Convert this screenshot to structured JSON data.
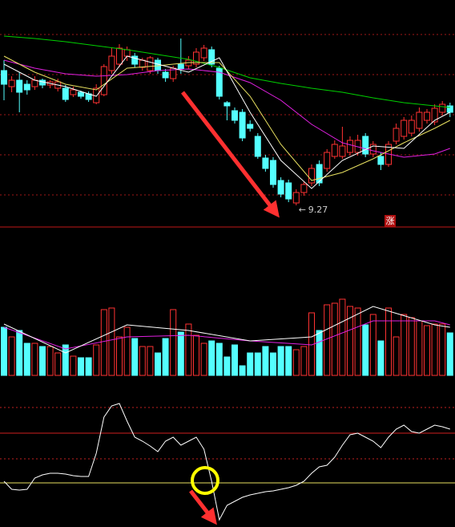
{
  "chart_data": [
    {
      "type": "candlestick",
      "up_color": "#ff3232",
      "down_color": "#54ffff",
      "ylim": [
        9.0,
        11.4
      ],
      "yticks": [
        9.4,
        9.9,
        10.4,
        10.9,
        11.4
      ],
      "grid": true,
      "open": [
        10.95,
        10.75,
        10.83,
        10.78,
        10.75,
        10.83,
        10.77,
        10.73,
        10.73,
        10.65,
        10.68,
        10.66,
        10.55,
        10.65,
        10.95,
        11.03,
        11.13,
        11.13,
        10.99,
        10.95,
        11.08,
        10.93,
        10.85,
        11.03,
        11.01,
        11.03,
        11.11,
        11.21,
        10.98,
        10.55,
        10.45,
        10.43,
        10.28,
        10.13,
        9.86,
        9.83,
        9.58,
        9.55,
        9.3,
        9.43,
        9.55,
        9.78,
        9.73,
        9.88,
        9.88,
        9.93,
        9.93,
        10.13,
        9.91,
        9.88,
        9.78,
        10.07,
        10.13,
        10.17,
        10.23,
        10.33,
        10.31,
        10.43,
        10.51
      ],
      "close": [
        10.78,
        10.83,
        10.68,
        10.71,
        10.83,
        10.77,
        10.81,
        10.81,
        10.59,
        10.71,
        10.63,
        10.59,
        10.73,
        11.0,
        11.13,
        11.23,
        11.21,
        11.03,
        11.08,
        11.11,
        10.95,
        10.86,
        10.98,
        10.97,
        11.08,
        11.18,
        11.23,
        11.03,
        10.63,
        10.51,
        10.33,
        10.11,
        10.23,
        9.88,
        9.73,
        9.53,
        9.41,
        9.35,
        9.43,
        9.53,
        9.73,
        9.55,
        9.93,
        10.03,
        10.01,
        10.08,
        10.08,
        9.91,
        10.03,
        9.78,
        10.03,
        10.23,
        10.33,
        10.33,
        10.43,
        10.43,
        10.48,
        10.53,
        10.43
      ],
      "high": [
        11.08,
        10.88,
        10.93,
        10.83,
        10.88,
        10.85,
        10.83,
        10.85,
        10.77,
        10.75,
        10.7,
        10.69,
        10.78,
        11.03,
        11.23,
        11.28,
        11.25,
        11.17,
        11.11,
        11.13,
        11.11,
        10.97,
        11.01,
        11.35,
        11.13,
        11.23,
        11.27,
        11.25,
        11.01,
        10.57,
        10.49,
        10.47,
        10.33,
        10.17,
        9.9,
        9.87,
        9.62,
        9.59,
        9.47,
        9.57,
        9.78,
        9.83,
        9.97,
        10.08,
        10.25,
        10.13,
        10.15,
        10.17,
        10.07,
        9.93,
        10.07,
        10.29,
        10.37,
        10.39,
        10.49,
        10.47,
        10.53,
        10.57,
        10.55
      ],
      "low": [
        10.58,
        10.68,
        10.43,
        10.65,
        10.71,
        10.73,
        10.73,
        10.69,
        10.56,
        10.62,
        10.6,
        10.56,
        10.53,
        10.63,
        10.91,
        10.99,
        11.07,
        10.99,
        10.95,
        10.91,
        10.91,
        10.81,
        10.81,
        10.91,
        10.97,
        10.99,
        11.07,
        10.99,
        10.59,
        10.33,
        10.29,
        10.07,
        10.19,
        9.85,
        9.69,
        9.49,
        9.37,
        9.31,
        9.27,
        9.39,
        9.51,
        9.51,
        9.69,
        9.85,
        9.85,
        9.89,
        9.89,
        9.87,
        9.87,
        9.71,
        9.75,
        10.03,
        10.09,
        10.13,
        10.19,
        10.29,
        10.27,
        10.39,
        10.37
      ],
      "lines": [
        {
          "color": "#00d000",
          "x": [
            0,
            4,
            8,
            12,
            16,
            20,
            24,
            28,
            32,
            36,
            40,
            44,
            48,
            52,
            56,
            58
          ],
          "values": [
            11.38,
            11.35,
            11.31,
            11.26,
            11.21,
            11.15,
            11.09,
            10.99,
            10.86,
            10.79,
            10.73,
            10.68,
            10.61,
            10.55,
            10.51,
            10.49
          ]
        },
        {
          "color": "#e020e0",
          "x": [
            0,
            4,
            8,
            12,
            16,
            20,
            24,
            28,
            32,
            36,
            40,
            44,
            48,
            52,
            56,
            58
          ],
          "values": [
            11.08,
            10.98,
            10.91,
            10.88,
            10.9,
            10.95,
            10.97,
            10.93,
            10.8,
            10.58,
            10.28,
            10.05,
            9.95,
            9.87,
            9.91,
            9.98
          ]
        },
        {
          "color": "#e8e060",
          "x": [
            0,
            4,
            8,
            12,
            16,
            20,
            24,
            28,
            32,
            36,
            40,
            44,
            48,
            52,
            56,
            58
          ],
          "values": [
            11.13,
            10.93,
            10.78,
            10.71,
            10.98,
            11.01,
            11.05,
            11.05,
            10.63,
            10.03,
            9.58,
            9.68,
            9.85,
            10.05,
            10.23,
            10.33
          ]
        },
        {
          "color": "#ffffff",
          "x": [
            0,
            4,
            8,
            12,
            16,
            20,
            24,
            28,
            32,
            36,
            40,
            44,
            48,
            52,
            56,
            58
          ],
          "values": [
            11.03,
            10.83,
            10.75,
            10.63,
            11.13,
            11.03,
            10.93,
            11.11,
            10.43,
            9.83,
            9.48,
            9.83,
            10.01,
            9.98,
            10.33,
            10.43
          ]
        }
      ],
      "low_marker": 9.27,
      "badge": "涨"
    },
    {
      "type": "bar",
      "ylim": [
        0,
        100
      ],
      "values": [
        60,
        48,
        56,
        40,
        40,
        36,
        36,
        28,
        38,
        24,
        22,
        22,
        38,
        82,
        84,
        48,
        60,
        46,
        36,
        36,
        28,
        46,
        82,
        54,
        64,
        50,
        40,
        43,
        40,
        23,
        38,
        12,
        28,
        28,
        36,
        28,
        36,
        36,
        32,
        36,
        78,
        56,
        88,
        90,
        95,
        86,
        84,
        63,
        76,
        43,
        84,
        48,
        76,
        72,
        68,
        62,
        64,
        64,
        53
      ],
      "lines": [
        {
          "color": "#e020e0",
          "x": [
            0,
            8,
            16,
            24,
            32,
            40,
            48,
            56,
            58
          ],
          "values": [
            60,
            33,
            48,
            50,
            43,
            38,
            68,
            68,
            63
          ]
        },
        {
          "color": "#ffffff",
          "x": [
            0,
            8,
            16,
            24,
            32,
            40,
            48,
            56,
            58
          ],
          "values": [
            64,
            28,
            63,
            56,
            43,
            48,
            86,
            63,
            60
          ]
        }
      ]
    },
    {
      "type": "line",
      "ylim": [
        -55,
        127
      ],
      "color": "#ffffff",
      "values": [
        2,
        -8,
        -9,
        -8,
        6,
        10,
        12,
        12,
        11,
        9,
        8,
        8,
        37,
        82,
        96,
        99,
        77,
        57,
        52,
        46,
        39,
        52,
        57,
        47,
        52,
        57,
        42,
        2,
        -46,
        -28,
        -23,
        -18,
        -15,
        -13,
        -11,
        -10,
        -8,
        -6,
        -3,
        2,
        12,
        20,
        22,
        32,
        47,
        60,
        62,
        57,
        52,
        44,
        57,
        67,
        72,
        64,
        62,
        67,
        72,
        70,
        67
      ],
      "reference_lines": [
        {
          "value": 94,
          "color": "#c02020",
          "dash": true
        },
        {
          "value": 62,
          "color": "#d02020",
          "dash": false
        },
        {
          "value": 30,
          "color": "#c02020",
          "dash": true
        },
        {
          "value": 0,
          "color": "#e8e060",
          "dash": false
        }
      ]
    }
  ]
}
